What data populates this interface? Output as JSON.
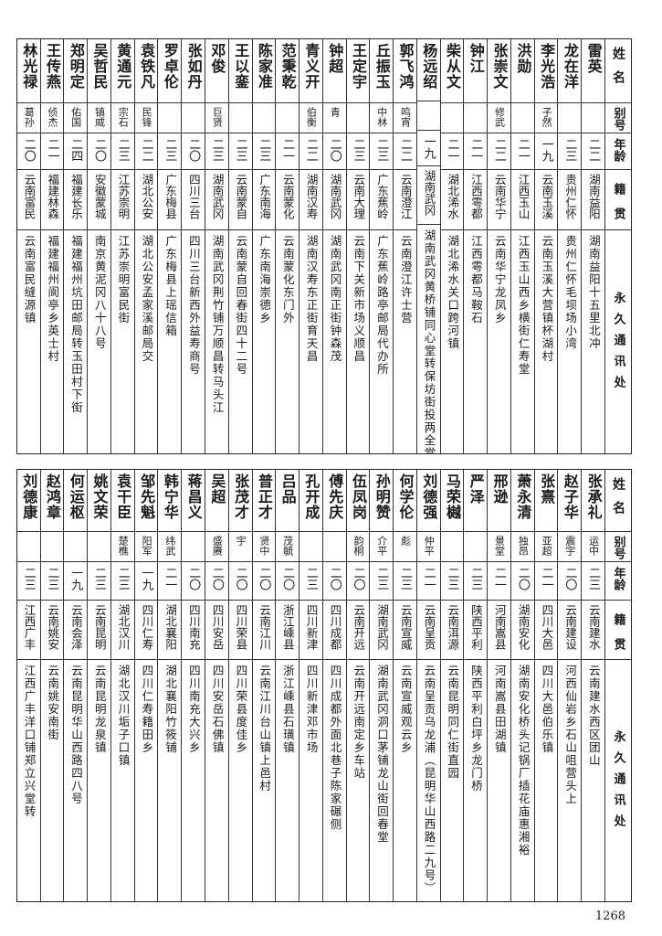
{
  "headers": {
    "name": "姓名",
    "alias": "别号",
    "age": "年龄",
    "origin": "籍贯",
    "address": "永久通讯处"
  },
  "top_table": [
    {
      "name": "雷英",
      "alias": "",
      "age": "二二",
      "origin": "湖南益阳",
      "address": "湖南益阳十五里北冲"
    },
    {
      "name": "龙在洋",
      "alias": "",
      "age": "二三",
      "origin": "贵州仁怀",
      "address": "贵州仁怀毛坝场小湾"
    },
    {
      "name": "李光浩",
      "alias": "子然",
      "age": "一九",
      "origin": "云南玉溪",
      "address": "云南玉溪大营镇杯湖村"
    },
    {
      "name": "洪勋",
      "alias": "",
      "age": "二一",
      "origin": "江西玉山",
      "address": "江西玉山西乡横街仁寿堂"
    },
    {
      "name": "张崇文",
      "alias": "修武",
      "age": "二二",
      "origin": "云南华宁",
      "address": "云南华宁龙凤乡"
    },
    {
      "name": "钟江",
      "alias": "",
      "age": "二一",
      "origin": "江西雩都",
      "address": "江西雩都马鞍石"
    },
    {
      "name": "柴从文",
      "alias": "",
      "age": "二一",
      "origin": "湖北浠水",
      "address": "湖北浠水关口跨河镇"
    },
    {
      "name": "杨远绍",
      "alias": "",
      "age": "一九",
      "origin": "湖南武冈",
      "address": "湖南武冈黄桥铺同心堂转保坊街投两全堂"
    },
    {
      "name": "郭飞鸿",
      "alias": "鸣宵",
      "age": "二二",
      "origin": "云南澄江",
      "address": "云南澄江许士营"
    },
    {
      "name": "丘振玉",
      "alias": "中林",
      "age": "二三",
      "origin": "广东蕉岭",
      "address": "广东蕉岭路亭邮局代办所"
    },
    {
      "name": "王定宇",
      "alias": "",
      "age": "二三",
      "origin": "云南大理",
      "address": "云南下关新市场义顺昌"
    },
    {
      "name": "钟超",
      "alias": "青",
      "age": "二〇",
      "origin": "湖南武冈",
      "address": "湖南武冈南正街钟森茂"
    },
    {
      "name": "青义开",
      "alias": "伯衡",
      "age": "二二",
      "origin": "湖南汉寿",
      "address": "湖南汉寿东正街育天昌"
    },
    {
      "name": "范秉乾",
      "alias": "",
      "age": "二一",
      "origin": "云南蒙化",
      "address": "云南蒙化东门外"
    },
    {
      "name": "陈家准",
      "alias": "",
      "age": "二三",
      "origin": "广东南海",
      "address": "广东南海崇德乡"
    },
    {
      "name": "王以銮",
      "alias": "",
      "age": "二三",
      "origin": "云南蒙自",
      "address": "云南蒙自回春街四十二号"
    },
    {
      "name": "邓俊",
      "alias": "巨贤",
      "age": "二三",
      "origin": "湖南武冈",
      "address": "湖南武冈荆竹铺万顺昌转马头江"
    },
    {
      "name": "张如丹",
      "alias": "",
      "age": "二〇",
      "origin": "四川三台",
      "address": "四川三台新西外益寿商号"
    },
    {
      "name": "罗卓伦",
      "alias": "",
      "age": "二三",
      "origin": "广东梅县",
      "address": "广东梅县上瑶信箱"
    },
    {
      "name": "袁铁凡",
      "alias": "民锋",
      "age": "二二",
      "origin": "湖北公安",
      "address": "湖北公安孟家溪邮局交"
    },
    {
      "name": "黄通元",
      "alias": "宗石",
      "age": "二三",
      "origin": "江苏崇明",
      "address": "江苏崇明富民街"
    },
    {
      "name": "吴哲民",
      "alias": "镇威",
      "age": "二〇",
      "origin": "安徽蒙城",
      "address": "南京黄泥冈八十八号"
    },
    {
      "name": "郑明定",
      "alias": "佑国",
      "age": "二四",
      "origin": "福建长乐",
      "address": "福建福州坑田邮局转玉田村下街"
    },
    {
      "name": "王传燕",
      "alias": "侦杰",
      "age": "二一",
      "origin": "福建林森",
      "address": "福建福州阆亭乡英士村"
    },
    {
      "name": "林光禄",
      "alias": "葛孙",
      "age": "二〇",
      "origin": "云南富民",
      "address": "云南富民缝源镇"
    }
  ],
  "bottom_table": [
    {
      "name": "张承礼",
      "alias": "运中",
      "age": "二三",
      "origin": "云南建水",
      "address": "云南建水西区团山"
    },
    {
      "name": "赵子华",
      "alias": "震宇",
      "age": "二〇",
      "origin": "云南建设",
      "address": "河西仙岩乡石山咀营头上"
    },
    {
      "name": "张熹",
      "alias": "亚超",
      "age": "二一",
      "origin": "四川大邑",
      "address": "四川大邑伯乐镇"
    },
    {
      "name": "萧永清",
      "alias": "独昂",
      "age": "二〇",
      "origin": "湖南安化",
      "address": "湖南安化桥头记锅厂插花庙惠湘裕"
    },
    {
      "name": "邢逊",
      "alias": "景堂",
      "age": "二一",
      "origin": "河南嵩县",
      "address": "河南嵩县田湖镇"
    },
    {
      "name": "严泽",
      "alias": "",
      "age": "二三",
      "origin": "陕西平利",
      "address": "陕西平利白坪乡龙门桥"
    },
    {
      "name": "马荣樾",
      "alias": "",
      "age": "二三",
      "origin": "云南洱源",
      "address": "云南昆明同仁街直园"
    },
    {
      "name": "刘德强",
      "alias": "仲平",
      "age": "二一",
      "origin": "云南呈贡",
      "address": "云南呈贡乌龙浦（昆明华山西路二九号）"
    },
    {
      "name": "何学伦",
      "alias": "彪",
      "age": "二三",
      "origin": "云南宣威",
      "address": "云南宣威观云乡"
    },
    {
      "name": "孙明赞",
      "alias": "介平",
      "age": "二三",
      "origin": "湖南武冈",
      "address": "湖南武冈洞口茅铺龙山街回春堂"
    },
    {
      "name": "伍凤岗",
      "alias": "韵桐",
      "age": "二〇",
      "origin": "云南开远",
      "address": "云南开远南定乡车站"
    },
    {
      "name": "傅先庆",
      "alias": "",
      "age": "二〇",
      "origin": "四川成都",
      "address": "四川成都外面北巷子陈家碾侧"
    },
    {
      "name": "孔开成",
      "alias": "",
      "age": "二三",
      "origin": "四川新津",
      "address": "四川新津邓市场"
    },
    {
      "name": "吕品",
      "alias": "茂毓",
      "age": "二〇",
      "origin": "浙江嵊县",
      "address": "浙江嵊县石璜镇"
    },
    {
      "name": "普正才",
      "alias": "贤中",
      "age": "二〇",
      "origin": "云南江川",
      "address": "云南江川台山镇上邑村"
    },
    {
      "name": "张茂才",
      "alias": "宇",
      "age": "二〇",
      "origin": "四川荣县",
      "address": "四川荣县度佳乡"
    },
    {
      "name": "吴超",
      "alias": "盛赓",
      "age": "二〇",
      "origin": "四川安岳",
      "address": "四川安岳石佛镇"
    },
    {
      "name": "蒋昌义",
      "alias": "",
      "age": "二〇",
      "origin": "四川南充",
      "address": "四川南充大兴乡"
    },
    {
      "name": "韩宁华",
      "alias": "纬武",
      "age": "二一",
      "origin": "湖北襄阳",
      "address": "湖北襄阳竹筱铺"
    },
    {
      "name": "邹先魁",
      "alias": "阳军",
      "age": "一九",
      "origin": "四川仁寿",
      "address": "四川仁寿籍田乡"
    },
    {
      "name": "袁干臣",
      "alias": "楚樵",
      "age": "二三",
      "origin": "湖北汉川",
      "address": "湖北汉川垢子口镇"
    },
    {
      "name": "姚文荣",
      "alias": "",
      "age": "二三",
      "origin": "云南昆明",
      "address": "云南昆明龙泉镇"
    },
    {
      "name": "何运枢",
      "alias": "",
      "age": "一九",
      "origin": "云南会泽",
      "address": "云南昆明华山西路四八号"
    },
    {
      "name": "赵鸿章",
      "alias": "",
      "age": "二三",
      "origin": "云南姚安",
      "address": "云南姚安南街"
    },
    {
      "name": "刘德康",
      "alias": "",
      "age": "二三",
      "origin": "江西广丰",
      "address": "江西广丰洋口铺郑立兴堂转"
    }
  ],
  "page_number": "1268"
}
